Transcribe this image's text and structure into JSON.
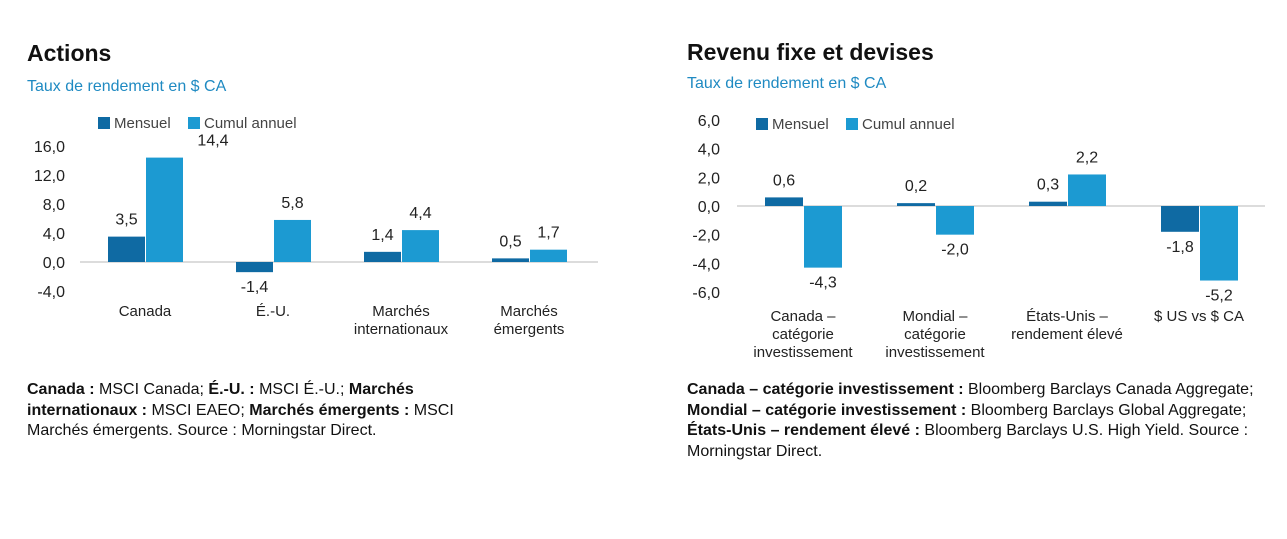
{
  "colors": {
    "monthly": "#0f6aa3",
    "ytd": "#1c9ad2",
    "subtitle": "#1f8ac2",
    "axis": "#d0d0d0"
  },
  "left": {
    "title": "Actions",
    "subtitle": "Taux de rendement en $ CA",
    "notes": [
      {
        "bold": "Canada : ",
        "text": "MSCI Canada; "
      },
      {
        "bold": "É.-U. : ",
        "text": "MSCI É.-U.; "
      },
      {
        "bold": "Marchés internationaux : ",
        "text": "MSCI EAEO; "
      },
      {
        "bold": "Marchés émergents : ",
        "text": "MSCI Marchés émergents. Source : Morningstar Direct."
      }
    ]
  },
  "right": {
    "title": "Revenu fixe et devises",
    "subtitle": "Taux de rendement en $ CA",
    "notes": [
      {
        "bold": "Canada – catégorie investissement : ",
        "text": "Bloomberg Barclays Canada Aggregate;"
      },
      {
        "bold": "Mondial – catégorie investissement : ",
        "text": "Bloomberg Barclays Global Aggregate;"
      },
      {
        "bold": "États-Unis – rendement élevé : ",
        "text": "Bloomberg Barclays U.S. High Yield. Source : Morningstar Direct."
      }
    ]
  },
  "chart_data": [
    {
      "type": "bar",
      "id": "actions",
      "categories": [
        [
          "Canada"
        ],
        [
          "É.-U."
        ],
        [
          "Marchés",
          "internationaux"
        ],
        [
          "Marchés",
          "émergents"
        ]
      ],
      "series": [
        {
          "name": "Mensuel",
          "values": [
            3.5,
            -1.4,
            1.4,
            0.5
          ],
          "labels": [
            "3,5",
            "-1,4",
            "1,4",
            "0,5"
          ]
        },
        {
          "name": "Cumul annuel",
          "values": [
            14.4,
            5.8,
            4.4,
            1.7
          ],
          "labels": [
            "14,4",
            "5,8",
            "4,4",
            "1,7"
          ]
        }
      ],
      "yticks": [
        16,
        12,
        8,
        4,
        0,
        -4
      ],
      "ytick_labels": [
        "16,0",
        "12,0",
        "8,0",
        "4,0",
        "0,0",
        "-4,0"
      ],
      "ylim": [
        -4,
        16
      ],
      "legend": "top"
    },
    {
      "type": "bar",
      "id": "revenu",
      "categories": [
        [
          "Canada –",
          "catégorie",
          "investissement"
        ],
        [
          "Mondial –",
          "catégorie",
          "investissement"
        ],
        [
          "États-Unis –",
          "rendement élevé"
        ],
        [
          "$ US vs $ CA"
        ]
      ],
      "series": [
        {
          "name": "Mensuel",
          "values": [
            0.6,
            0.2,
            0.3,
            -1.8
          ],
          "labels": [
            "0,6",
            "0,2",
            "0,3",
            "-1,8"
          ]
        },
        {
          "name": "Cumul annuel",
          "values": [
            -4.3,
            -2.0,
            2.2,
            -5.2
          ],
          "labels": [
            "-4,3",
            "-2,0",
            "2,2",
            "-5,2"
          ]
        }
      ],
      "yticks": [
        6,
        4,
        2,
        0,
        -2,
        -4,
        -6
      ],
      "ytick_labels": [
        "6,0",
        "4,0",
        "2,0",
        "0,0",
        "-2,0",
        "-4,0",
        "-6,0"
      ],
      "ylim": [
        -6,
        6
      ],
      "legend": "top"
    }
  ]
}
